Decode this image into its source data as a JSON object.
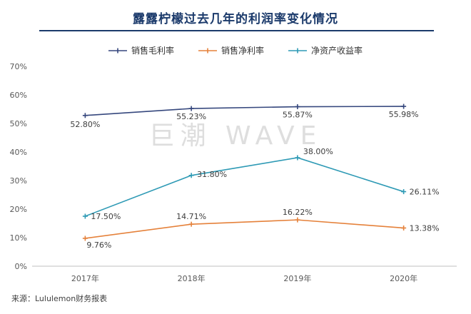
{
  "title": "露露柠檬过去几年的利润率变化情况",
  "watermark": "巨潮 WAVE",
  "source": "来源：Lululemon财务报表",
  "chart_data": {
    "type": "line",
    "title": "露露柠檬过去几年的利润率变化情况",
    "categories": [
      "2017年",
      "2018年",
      "2019年",
      "2020年"
    ],
    "series": [
      {
        "name": "销售毛利率",
        "color": "#35477d",
        "values": [
          52.8,
          55.23,
          55.87,
          55.98
        ],
        "labels": [
          "52.80%",
          "55.23%",
          "55.87%",
          "55.98%"
        ]
      },
      {
        "name": "销售净利率",
        "color": "#e5813a",
        "values": [
          9.76,
          14.71,
          16.22,
          13.38
        ],
        "labels": [
          "9.76%",
          "14.71%",
          "16.22%",
          "13.38%"
        ]
      },
      {
        "name": "净资产收益率",
        "color": "#2e9ab5",
        "values": [
          17.5,
          31.8,
          38.0,
          26.11
        ],
        "labels": [
          "17.50%",
          "31.80%",
          "38.00%",
          "26.11%"
        ]
      }
    ],
    "ylim": [
      0,
      70
    ],
    "ytick_step": 10,
    "ytick_suffix": "%",
    "grid": false,
    "legend_position": "top"
  }
}
